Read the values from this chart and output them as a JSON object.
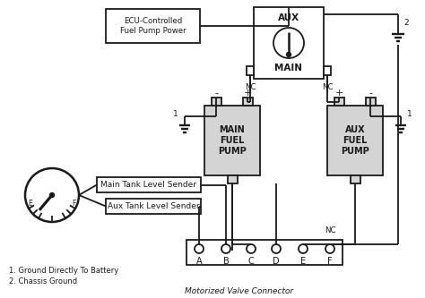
{
  "bg_color": "#ffffff",
  "line_color": "#1a1a1a",
  "box_fill": "#d4d4d4",
  "title": "Motorized Valve Connector",
  "ecu_label": "ECU-Controlled\nFuel Pump Power",
  "main_pump_label": "MAIN\nFUEL\nPUMP",
  "aux_pump_label": "AUX\nFUEL\nPUMP",
  "relay_aux_label": "AUX",
  "relay_main_label": "MAIN",
  "main_sender_label": "Main Tank Level Sender",
  "aux_sender_label": "Aux Tank Level Sender",
  "note1": "1. Ground Directly To Battery",
  "note2": "2. Chassis Ground",
  "connector_labels": [
    "A",
    "B",
    "C",
    "D",
    "E",
    "F"
  ],
  "nc_label": "NC",
  "label2": "2",
  "label1": "1"
}
